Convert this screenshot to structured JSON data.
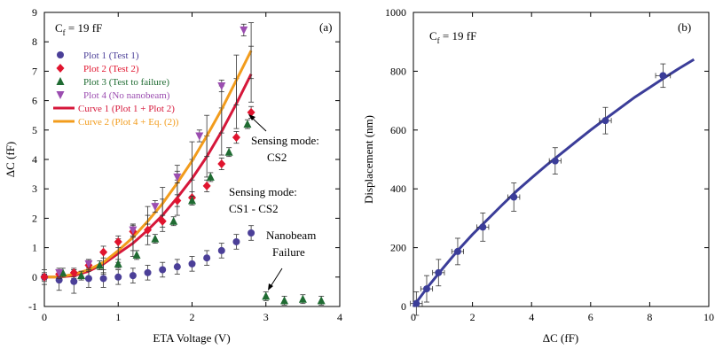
{
  "chart_data": [
    {
      "type": "scatter",
      "panel_label": "(a)",
      "cf_label": {
        "main": "C",
        "sub": "f",
        "rest": " = 19 fF"
      },
      "xlabel": "ETA Voltage (V)",
      "ylabel": "ΔC (fF)",
      "xlim": [
        0,
        4
      ],
      "ylim": [
        -1,
        9
      ],
      "xticks": [
        0,
        1,
        2,
        3,
        4
      ],
      "yticks": [
        -1,
        0,
        1,
        2,
        3,
        4,
        5,
        6,
        7,
        8,
        9
      ],
      "grid": false,
      "legend_position": "left",
      "series": [
        {
          "name": "Plot 1 (Test 1)",
          "color": "#4b3f98",
          "marker": "circle",
          "x": [
            0.0,
            0.2,
            0.4,
            0.6,
            0.8,
            1.0,
            1.2,
            1.4,
            1.6,
            1.8,
            2.0,
            2.2,
            2.4,
            2.6,
            2.8
          ],
          "y": [
            0.0,
            -0.1,
            -0.15,
            -0.05,
            -0.05,
            0.0,
            0.05,
            0.15,
            0.25,
            0.35,
            0.45,
            0.65,
            0.9,
            1.2,
            1.5
          ],
          "err": [
            0.25,
            0.35,
            0.4,
            0.3,
            0.3,
            0.25,
            0.25,
            0.25,
            0.25,
            0.25,
            0.25,
            0.25,
            0.25,
            0.25,
            0.25
          ]
        },
        {
          "name": "Plot 2 (Test 2)",
          "color": "#e0142e",
          "marker": "diamond",
          "x": [
            0.0,
            0.2,
            0.4,
            0.6,
            0.8,
            1.0,
            1.2,
            1.4,
            1.6,
            1.8,
            2.0,
            2.2,
            2.4,
            2.6,
            2.8
          ],
          "y": [
            0.0,
            0.1,
            0.15,
            0.4,
            0.85,
            1.2,
            1.55,
            1.6,
            1.9,
            2.6,
            2.7,
            3.1,
            3.85,
            4.75,
            5.6
          ],
          "err": [
            0.15,
            0.15,
            0.15,
            0.2,
            0.2,
            0.2,
            0.2,
            0.2,
            0.2,
            0.2,
            0.2,
            0.2,
            0.2,
            0.2,
            0.2
          ]
        },
        {
          "name": "Plot 3 (Test to failure)",
          "color": "#1f6b32",
          "marker": "triangle-up",
          "x": [
            0.25,
            0.5,
            0.75,
            1.0,
            1.25,
            1.5,
            1.75,
            2.0,
            2.25,
            2.5,
            2.75,
            3.0,
            3.25,
            3.5,
            3.75
          ],
          "y": [
            0.15,
            0.05,
            0.4,
            0.45,
            0.75,
            1.3,
            1.9,
            2.6,
            3.4,
            4.25,
            5.2,
            -0.65,
            -0.8,
            -0.75,
            -0.8
          ],
          "err": [
            0.15,
            0.15,
            0.15,
            0.15,
            0.15,
            0.15,
            0.15,
            0.15,
            0.15,
            0.15,
            0.15,
            0.15,
            0.15,
            0.15,
            0.15
          ]
        },
        {
          "name": "Plot 4 (No nanobeam)",
          "color": "#9b4db0",
          "marker": "triangle-down",
          "x": [
            0.2,
            0.6,
            1.2,
            1.5,
            1.8,
            2.1,
            2.4,
            2.7
          ],
          "y": [
            0.15,
            0.45,
            1.6,
            2.4,
            3.4,
            4.8,
            6.5,
            8.4
          ],
          "err": [
            0.15,
            0.15,
            0.2,
            0.2,
            0.2,
            0.2,
            0.2,
            0.2
          ]
        },
        {
          "name": "Curve 1 (Plot 1 + Plot 2)",
          "color": "#d6173a",
          "line": true,
          "x": [
            0.0,
            0.2,
            0.4,
            0.6,
            0.8,
            1.0,
            1.2,
            1.4,
            1.6,
            1.8,
            2.0,
            2.2,
            2.4,
            2.6,
            2.8
          ],
          "y": [
            0.0,
            0.0,
            0.05,
            0.2,
            0.45,
            0.8,
            1.15,
            1.6,
            2.1,
            2.7,
            3.35,
            4.1,
            4.95,
            5.9,
            6.9
          ],
          "err": [
            0.1,
            0.1,
            0.15,
            0.25,
            0.35,
            0.4,
            0.45,
            0.5,
            0.55,
            0.6,
            0.65,
            0.7,
            0.8,
            0.85,
            0.95
          ]
        },
        {
          "name": "Curve 2 (Plot 4 + Eq. (2))",
          "color": "#f29c1c",
          "line": true,
          "x": [
            0.0,
            0.2,
            0.4,
            0.6,
            0.8,
            1.0,
            1.2,
            1.4,
            1.6,
            1.8,
            2.0,
            2.2,
            2.4,
            2.6,
            2.8
          ],
          "y": [
            0.0,
            0.0,
            0.1,
            0.25,
            0.5,
            0.9,
            1.35,
            1.9,
            2.5,
            3.2,
            3.95,
            4.8,
            5.7,
            6.7,
            7.7
          ],
          "err": [
            0.1,
            0.1,
            0.15,
            0.25,
            0.35,
            0.4,
            0.45,
            0.5,
            0.55,
            0.6,
            0.65,
            0.7,
            0.8,
            0.85,
            0.95
          ]
        }
      ],
      "annotations": {
        "cs2": [
          "Sensing mode:",
          "CS2"
        ],
        "cs1cs2": [
          "Sensing mode:",
          "CS1 - CS2"
        ],
        "failure": [
          "Nanobeam",
          "Failure"
        ]
      }
    },
    {
      "type": "line",
      "panel_label": "(b)",
      "cf_label": {
        "main": "C",
        "sub": "f",
        "rest": " = 19 fF"
      },
      "xlabel": "ΔC (fF)",
      "ylabel": "Displacement (nm)",
      "xlim": [
        0,
        10
      ],
      "ylim": [
        0,
        1000
      ],
      "xticks": [
        0,
        2,
        4,
        6,
        8,
        10
      ],
      "yticks": [
        0,
        200,
        400,
        600,
        800,
        1000
      ],
      "grid": false,
      "color": "#3b3d99",
      "curve": {
        "x": [
          0,
          0.5,
          1,
          1.5,
          2,
          2.5,
          3,
          3.5,
          4,
          4.5,
          5,
          5.5,
          6,
          6.5,
          7,
          7.5,
          8,
          8.5,
          9,
          9.5
        ],
        "y": [
          0,
          68,
          130,
          190,
          245,
          295,
          345,
          393,
          437,
          480,
          520,
          560,
          600,
          638,
          675,
          712,
          745,
          778,
          810,
          840
        ]
      },
      "points": {
        "x": [
          0.1,
          0.45,
          0.85,
          1.5,
          2.35,
          3.4,
          4.8,
          6.5,
          8.45
        ],
        "y": [
          10,
          60,
          115,
          187,
          270,
          372,
          495,
          632,
          785
        ],
        "yerr": [
          40,
          45,
          45,
          45,
          48,
          48,
          45,
          45,
          40
        ],
        "xerr": [
          0.2,
          0.2,
          0.2,
          0.2,
          0.2,
          0.2,
          0.2,
          0.2,
          0.25
        ]
      }
    }
  ]
}
